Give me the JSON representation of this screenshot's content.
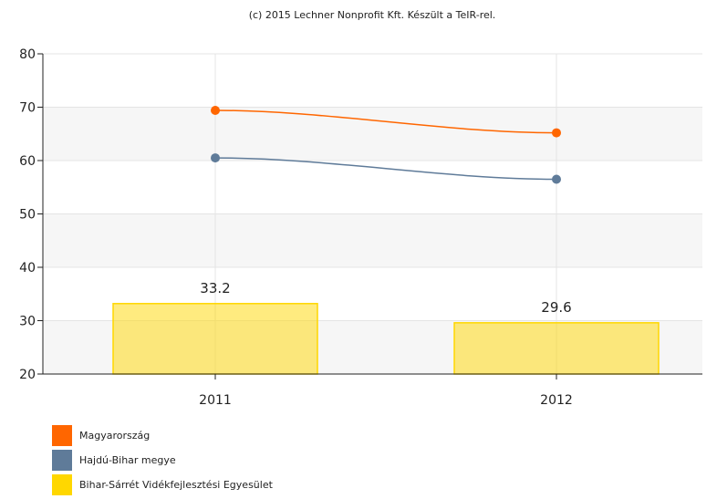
{
  "credit": "(c) 2015 Lechner Nonprofit Kft. Készült a TeIR-rel.",
  "chart_data": {
    "type": "bar+line",
    "categories": [
      "2011",
      "2012"
    ],
    "ylim": [
      20,
      80
    ],
    "yticks": [
      20,
      30,
      40,
      50,
      60,
      70,
      80
    ],
    "grid": true,
    "legend_position": "bottom-left",
    "series": [
      {
        "name": "Magyarország",
        "type": "line",
        "color": "#ff6600",
        "values": [
          69.4,
          65.2
        ]
      },
      {
        "name": "Hajdú-Bihar megye",
        "type": "line",
        "color": "#5f7b99",
        "values": [
          60.5,
          56.5
        ]
      },
      {
        "name": "Bihar-Sárrét Vidékfejlesztési Egyesület",
        "type": "bar",
        "color": "#ffd700",
        "values": [
          33.2,
          29.6
        ],
        "labels": [
          "33.2",
          "29.6"
        ]
      }
    ]
  }
}
